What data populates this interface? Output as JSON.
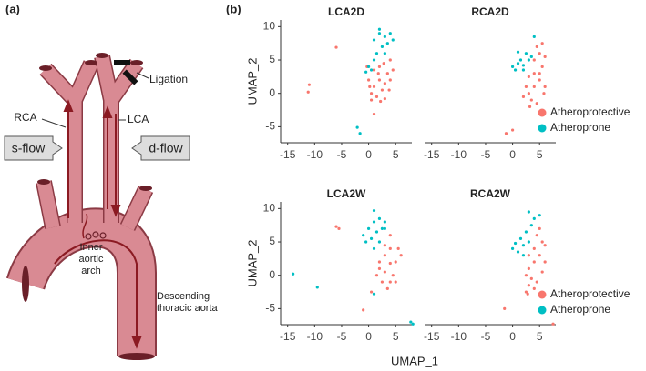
{
  "figure": {
    "panel_a": "(a)",
    "panel_b": "(b)",
    "rca": "RCA",
    "lca": "LCA",
    "ligation": "Ligation",
    "s_flow": "s-flow",
    "d_flow": "d-flow",
    "inner_arch": [
      "Inner",
      "aortic",
      "arch"
    ],
    "descending": [
      "Descending",
      "thoracic aorta"
    ],
    "xlabel": "UMAP_1",
    "ylabel": "UMAP_2"
  },
  "chart_data": [
    {
      "type": "scatter",
      "title": "LCA2D",
      "xlim": [
        -16.3,
        8
      ],
      "ylim": [
        -7.4,
        11
      ],
      "xticks": [
        -15,
        -10,
        -5,
        0,
        5
      ],
      "yticks": [
        -5,
        0,
        5,
        10
      ],
      "series": [
        {
          "color": "#F8766D",
          "x": [
            0.5,
            1,
            2,
            3,
            1.5,
            2.5,
            0,
            3.5,
            1,
            2,
            4,
            0.5,
            3,
            1.8,
            2.8,
            4.5,
            0.2,
            3.8,
            -0.3,
            2.2,
            -11,
            -11.2,
            -6,
            1,
            4
          ],
          "values": [
            0,
            1,
            2,
            1.5,
            -0.5,
            0.5,
            2,
            3,
            3.5,
            4,
            2,
            -1,
            -0.8,
            3,
            4.5,
            3.5,
            1,
            0.5,
            4,
            -1.2,
            1.3,
            0.2,
            6.9,
            -3.1,
            5
          ]
        },
        {
          "color": "#00BFC4",
          "x": [
            1,
            2,
            3,
            4,
            2.5,
            4.5,
            1.5,
            3.5,
            0,
            0.5,
            -0.5,
            2,
            3,
            1,
            -2.1,
            -1.6
          ],
          "values": [
            8,
            9,
            8.5,
            9,
            7,
            8,
            6,
            7.5,
            4,
            3.5,
            3.2,
            9.6,
            6,
            5,
            -5.1,
            -6
          ]
        }
      ]
    },
    {
      "type": "scatter",
      "title": "RCA2D",
      "xlim": [
        -16.3,
        8
      ],
      "ylim": [
        -7.4,
        11
      ],
      "xticks": [
        -15,
        -10,
        -5,
        0,
        5
      ],
      "legend": "right",
      "series": [
        {
          "name": "Atheroprotective",
          "color": "#F8766D",
          "x": [
            3,
            4,
            5,
            5.5,
            4,
            5,
            5.5,
            3.5,
            2.5,
            4.5,
            6,
            5,
            3,
            4,
            6,
            4.5,
            2,
            5.8,
            3.2,
            -1.2,
            0
          ],
          "values": [
            0,
            1,
            2,
            4,
            5,
            6,
            7.5,
            -1,
            1,
            -1.5,
            1,
            3,
            2.5,
            3,
            5.5,
            7,
            -0.5,
            0,
            -2,
            -6,
            -5.5
          ]
        },
        {
          "name": "Atheroprone",
          "color": "#00BFC4",
          "x": [
            0,
            1,
            2,
            1.5,
            3,
            2.5,
            3.5,
            0.5,
            1,
            4,
            2
          ],
          "values": [
            4,
            4.5,
            3.5,
            5,
            5,
            6,
            5.5,
            3.5,
            6.2,
            8.5,
            4.2
          ]
        }
      ]
    },
    {
      "type": "scatter",
      "title": "LCA2W",
      "xlim": [
        -16.3,
        8
      ],
      "ylim": [
        -7.4,
        11
      ],
      "xticks": [
        -15,
        -10,
        -5,
        0,
        5
      ],
      "yticks": [
        -5,
        0,
        5,
        10
      ],
      "series": [
        {
          "color": "#F8766D",
          "x": [
            2,
            3,
            4,
            5,
            4.5,
            3,
            2.5,
            3.5,
            5.5,
            4,
            1.5,
            5,
            3,
            2,
            4,
            6,
            -6,
            -5.5,
            -1,
            0.5,
            4
          ],
          "values": [
            2,
            3,
            4,
            2,
            0,
            0.5,
            -1,
            -2,
            4,
            6,
            0,
            -1,
            4.5,
            1,
            1.8,
            3,
            7.3,
            7,
            -5.2,
            -2.5,
            -1
          ]
        },
        {
          "color": "#00BFC4",
          "x": [
            -1,
            0,
            1,
            2,
            3,
            -0.5,
            0.5,
            1.5,
            2.5,
            1,
            2,
            3,
            1,
            -14,
            -9.5,
            1,
            7.8,
            8.2
          ],
          "values": [
            6,
            7,
            8,
            8.5,
            8,
            5,
            5.5,
            6.5,
            7,
            4,
            5,
            7,
            9.7,
            0.2,
            -1.8,
            -2.8,
            -7,
            -7.3
          ]
        }
      ]
    },
    {
      "type": "scatter",
      "title": "RCA2W",
      "xlim": [
        -16.3,
        8
      ],
      "ylim": [
        -7.4,
        11
      ],
      "xticks": [
        -15,
        -10,
        -5,
        0,
        5
      ],
      "legend": "right",
      "series": [
        {
          "name": "Atheroprotective",
          "color": "#F8766D",
          "x": [
            3,
            4,
            5,
            5.5,
            4.5,
            5,
            3.5,
            4.5,
            6,
            3,
            4,
            2.5,
            5.5,
            4,
            6,
            3,
            -1.5,
            7.5,
            2.5,
            2.8
          ],
          "values": [
            1,
            2,
            3,
            5,
            6,
            7,
            -0.5,
            -1,
            2,
            3,
            4,
            0,
            0.5,
            -2,
            4.5,
            -1.5,
            -5,
            -7.3,
            -2.5,
            -2.8
          ]
        },
        {
          "name": "Atheroprone",
          "color": "#00BFC4",
          "x": [
            0,
            1,
            2,
            1.5,
            3,
            2.5,
            3.5,
            4,
            0.5,
            2,
            5,
            3
          ],
          "values": [
            4,
            3.5,
            4.5,
            5.5,
            5,
            6.5,
            7.5,
            8.5,
            4.8,
            3,
            9,
            9.5
          ]
        }
      ]
    }
  ]
}
